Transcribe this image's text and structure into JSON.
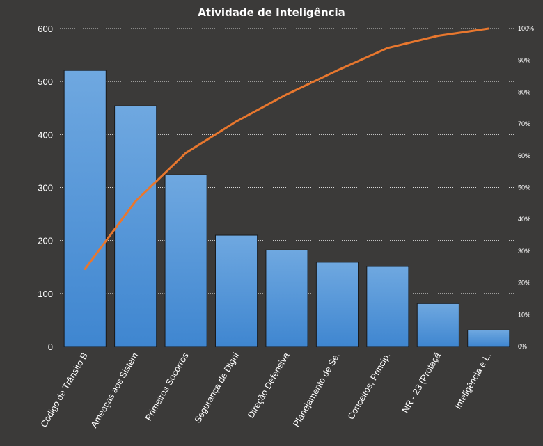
{
  "chart_data": {
    "type": "bar",
    "title": "Atividade de Inteligência",
    "categories": [
      "Código de Trânsito B",
      "Ameaças aos Sistem",
      "Primeiros Socorros",
      "Segurança de Digni",
      "Direção Defensiva",
      "Planejamento de Se.",
      "Conceitos, Princip.",
      "NR - 23 (Proteçã",
      "Inteligência e L."
    ],
    "values": [
      521,
      454,
      324,
      210,
      182,
      159,
      151,
      81,
      31
    ],
    "cumulative_percent": [
      24.4,
      45.7,
      60.9,
      70.8,
      79.3,
      86.8,
      93.9,
      97.7,
      100
    ],
    "ylim": [
      0,
      600
    ],
    "yticks": [
      "0",
      "100",
      "200",
      "300",
      "400",
      "500",
      "600"
    ],
    "y2lim": [
      0,
      100
    ],
    "y2ticks": [
      "0%",
      "10%",
      "20%",
      "30%",
      "40%",
      "50%",
      "60%",
      "70%",
      "80%",
      "90%",
      "100%"
    ],
    "grid": true,
    "legend": "none",
    "colors": {
      "background": "#3b3a39",
      "bar_top": "#6fa8e0",
      "bar_bottom": "#3f86d0",
      "line": "#e8772e",
      "text": "#ffffff",
      "grid": "#d9d9d9"
    }
  }
}
